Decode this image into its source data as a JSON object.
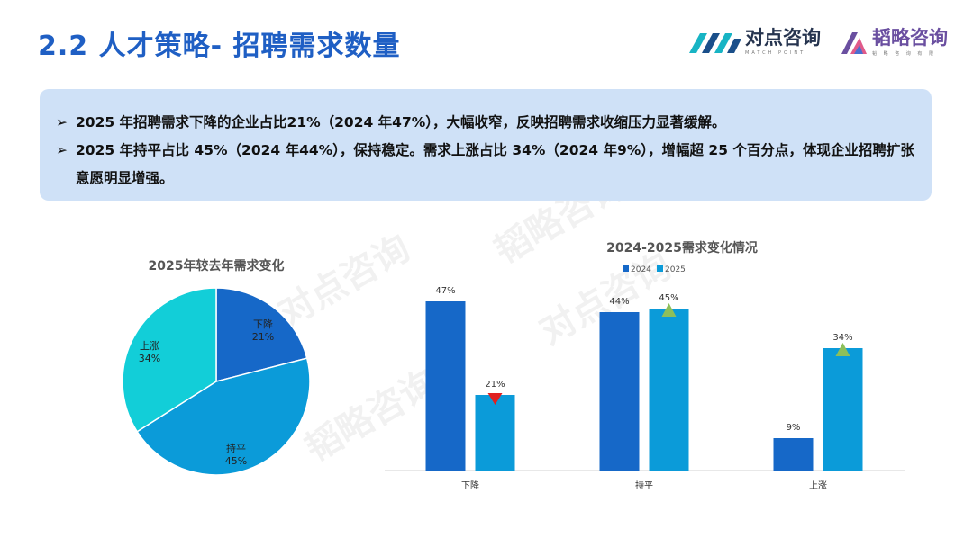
{
  "header": {
    "title": "2.2 人才策略- 招聘需求数量",
    "logo1_text": "对点咨询",
    "logo1_sub": "MATCH POINT",
    "logo2_text": "韬略咨询",
    "logo2_sub": "韬 略 咨 询 有 限"
  },
  "summary": {
    "bullets": [
      "2025 年招聘需求下降的企业占比21%（2024 年47%），大幅收窄，反映招聘需求收缩压力显著缓解。",
      "2025 年持平占比 45%（2024 年44%），保持稳定。需求上涨占比 34%（2024 年9%），增幅超 25 个百分点，体现企业招聘扩张意愿明显增强。"
    ]
  },
  "watermarks": [
    "对点咨询",
    "韬略咨询",
    "对点咨询",
    "韬略咨询"
  ],
  "colors": {
    "dark_blue": "#1668c8",
    "mid_blue": "#0b9bd9",
    "cyan": "#12ced8",
    "down_marker": "#e02020",
    "up_marker": "#8dbf5a"
  },
  "chart_data": [
    {
      "type": "pie",
      "title": "2025年较去年需求变化",
      "slices": [
        {
          "label": "下降",
          "value": 21,
          "display": "21%",
          "color": "#1668c8"
        },
        {
          "label": "持平",
          "value": 45,
          "display": "45%",
          "color": "#0b9bd9"
        },
        {
          "label": "上涨",
          "value": 34,
          "display": "34%",
          "color": "#12ced8"
        }
      ]
    },
    {
      "type": "bar",
      "title": "2024-2025需求变化情况",
      "categories": [
        "下降",
        "持平",
        "上涨"
      ],
      "series": [
        {
          "name": "2024",
          "values": [
            47,
            44,
            9
          ],
          "color": "#1668c8"
        },
        {
          "name": "2025",
          "values": [
            21,
            45,
            34
          ],
          "color": "#0b9bd9"
        }
      ],
      "markers": [
        "down",
        "up",
        "up"
      ],
      "legend": "top",
      "ylim": [
        0,
        50
      ]
    }
  ]
}
